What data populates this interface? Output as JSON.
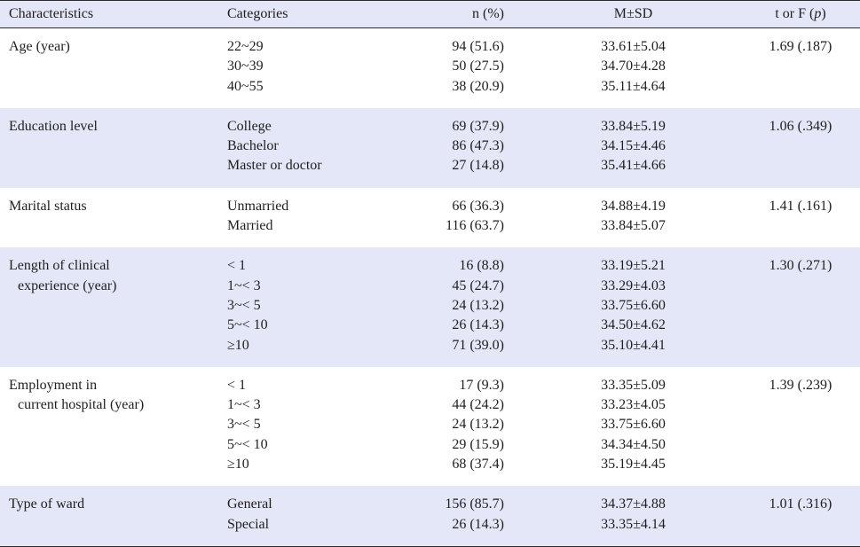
{
  "header": {
    "characteristics": "Characteristics",
    "categories": "Categories",
    "n_pct": "n (%)",
    "msd": "M±SD",
    "t_or_f": "t or F (",
    "p": "p",
    "close": ")"
  },
  "groups": [
    {
      "char1": "Age (year)",
      "char2": "",
      "stat": "1.69 (.187)",
      "rows": [
        {
          "cat": "22~29",
          "n": "94 (51.6)",
          "msd": "33.61±5.04"
        },
        {
          "cat": "30~39",
          "n": "50 (27.5)",
          "msd": "34.70±4.28"
        },
        {
          "cat": "40~55",
          "n": "38 (20.9)",
          "msd": "35.11±4.64"
        }
      ]
    },
    {
      "char1": "Education level",
      "char2": "",
      "stat": "1.06 (.349)",
      "rows": [
        {
          "cat": "College",
          "n": "69 (37.9)",
          "msd": "33.84±5.19"
        },
        {
          "cat": "Bachelor",
          "n": "86 (47.3)",
          "msd": "34.15±4.46"
        },
        {
          "cat": "Master or doctor",
          "n": "27 (14.8)",
          "msd": "35.41±4.66"
        }
      ]
    },
    {
      "char1": "Marital status",
      "char2": "",
      "stat": "1.41 (.161)",
      "rows": [
        {
          "cat": "Unmarried",
          "n": "66 (36.3)",
          "msd": "34.88±4.19"
        },
        {
          "cat": "Married",
          "n": "116 (63.7)",
          "msd": "33.84±5.07"
        }
      ]
    },
    {
      "char1": "Length of clinical",
      "char2": "experience (year)",
      "stat": "1.30 (.271)",
      "rows": [
        {
          "cat": "< 1",
          "n": "16 (8.8)",
          "msd": "33.19±5.21"
        },
        {
          "cat": "1~< 3",
          "n": "45 (24.7)",
          "msd": "33.29±4.03"
        },
        {
          "cat": "3~< 5",
          "n": "24 (13.2)",
          "msd": "33.75±6.60"
        },
        {
          "cat": "5~< 10",
          "n": "26 (14.3)",
          "msd": "34.50±4.62"
        },
        {
          "cat": "≥10",
          "n": "71 (39.0)",
          "msd": "35.10±4.41"
        }
      ]
    },
    {
      "char1": "Employment in",
      "char2": "current hospital (year)",
      "stat": "1.39 (.239)",
      "rows": [
        {
          "cat": "< 1",
          "n": "17 (9.3)",
          "msd": "33.35±5.09"
        },
        {
          "cat": "1~< 3",
          "n": "44 (24.2)",
          "msd": "33.23±4.05"
        },
        {
          "cat": "3~< 5",
          "n": "24 (13.2)",
          "msd": "33.75±6.60"
        },
        {
          "cat": "5~< 10",
          "n": "29 (15.9)",
          "msd": "34.34±4.50"
        },
        {
          "cat": "≥10",
          "n": "68 (37.4)",
          "msd": "35.19±4.45"
        }
      ]
    },
    {
      "char1": "Type of ward",
      "char2": "",
      "stat": "1.01 (.316)",
      "rows": [
        {
          "cat": "General",
          "n": "156 (85.7)",
          "msd": "34.37±4.88"
        },
        {
          "cat": "Special",
          "n": "26 (14.3)",
          "msd": "33.35±4.14"
        }
      ]
    }
  ]
}
